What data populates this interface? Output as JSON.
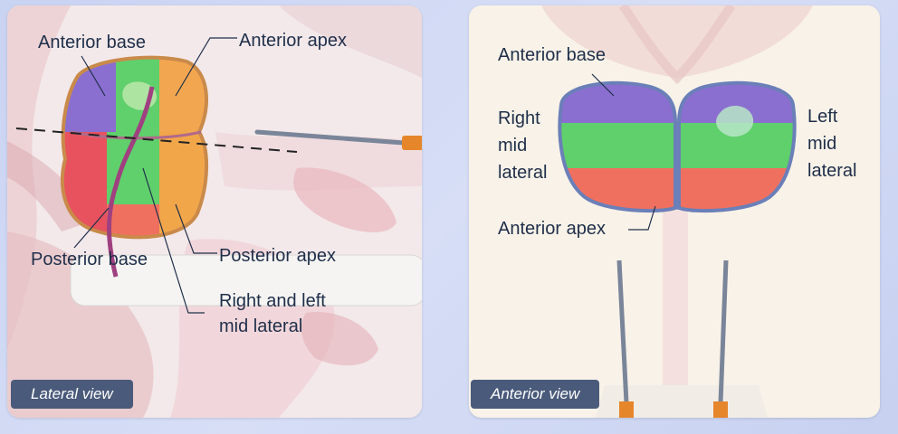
{
  "lateral_panel": {
    "labels": {
      "anterior_base": "Anterior base",
      "anterior_apex": "Anterior apex",
      "posterior_base": "Posterior base",
      "posterior_apex": "Posterior apex",
      "right_left_mid_lateral_1": "Right and left",
      "right_left_mid_lateral_2": "mid lateral"
    },
    "view_tag": "Lateral view"
  },
  "anterior_panel": {
    "labels": {
      "anterior_base": "Anterior base",
      "right_mid_lateral_1": "Right",
      "right_mid_lateral_2": "mid",
      "right_mid_lateral_3": "lateral",
      "left_mid_lateral_1": "Left",
      "left_mid_lateral_2": "mid",
      "left_mid_lateral_3": "lateral",
      "anterior_apex": "Anterior apex"
    },
    "view_tag": "Anterior view"
  },
  "colors": {
    "purple": "#8a6fd0",
    "green": "#5fd06b",
    "red_orange": "#f07060",
    "orange": "#f2a64a",
    "label_text": "#1f2f4a",
    "tag_bg": "#4a5a7a"
  }
}
